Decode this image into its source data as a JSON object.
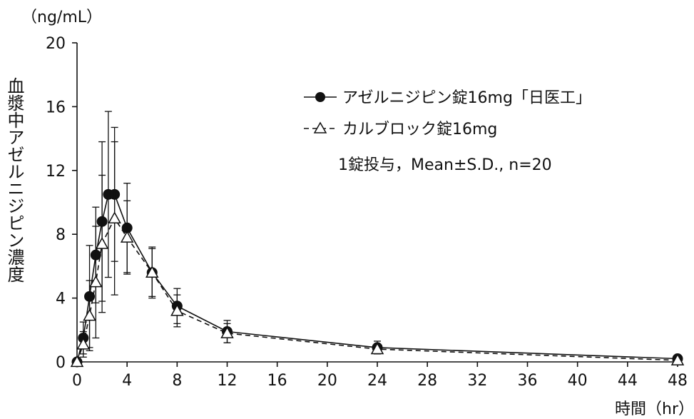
{
  "chart_data": {
    "type": "line",
    "y_unit": "（ng/mL）",
    "ylabel": "血漿中アゼルニジピン濃度",
    "xlabel": "時間（hr）",
    "annotation": "1錠投与，Mean±S.D., n=20",
    "xlim": [
      0,
      48
    ],
    "ylim": [
      0,
      20
    ],
    "xticks": [
      0,
      4,
      8,
      12,
      16,
      20,
      24,
      28,
      32,
      36,
      40,
      44,
      48
    ],
    "yticks": [
      0,
      4,
      8,
      12,
      16,
      20
    ],
    "grid": false,
    "legend_position": "top-right",
    "series": [
      {
        "name": "アゼルニジピン錠16mg「日医工」",
        "marker": "filled-circle",
        "line": "solid",
        "points": [
          {
            "x": 0,
            "y": 0,
            "sd": 0
          },
          {
            "x": 0.5,
            "y": 1.5,
            "sd": 1.0
          },
          {
            "x": 1,
            "y": 4.1,
            "sd": 3.2
          },
          {
            "x": 1.5,
            "y": 6.7,
            "sd": 3.0
          },
          {
            "x": 2,
            "y": 8.8,
            "sd": 5.0
          },
          {
            "x": 2.5,
            "y": 10.5,
            "sd": 5.2
          },
          {
            "x": 3,
            "y": 10.5,
            "sd": 4.2
          },
          {
            "x": 4,
            "y": 8.4,
            "sd": 2.8
          },
          {
            "x": 6,
            "y": 5.6,
            "sd": 1.6
          },
          {
            "x": 8,
            "y": 3.5,
            "sd": 1.1
          },
          {
            "x": 12,
            "y": 1.9,
            "sd": 0.7
          },
          {
            "x": 24,
            "y": 0.9,
            "sd": 0.4
          },
          {
            "x": 48,
            "y": 0.2,
            "sd": 0.1
          }
        ]
      },
      {
        "name": "カルブロック錠16mg",
        "marker": "open-triangle",
        "line": "dashed",
        "points": [
          {
            "x": 0,
            "y": 0,
            "sd": 0
          },
          {
            "x": 0.5,
            "y": 1.1,
            "sd": 0.8
          },
          {
            "x": 1,
            "y": 2.9,
            "sd": 2.2
          },
          {
            "x": 1.5,
            "y": 5.0,
            "sd": 3.5
          },
          {
            "x": 2,
            "y": 7.4,
            "sd": 4.3
          },
          {
            "x": 3,
            "y": 9.0,
            "sd": 4.8
          },
          {
            "x": 4,
            "y": 7.8,
            "sd": 2.3
          },
          {
            "x": 6,
            "y": 5.6,
            "sd": 1.5
          },
          {
            "x": 8,
            "y": 3.2,
            "sd": 1.0
          },
          {
            "x": 12,
            "y": 1.8,
            "sd": 0.6
          },
          {
            "x": 24,
            "y": 0.8,
            "sd": 0.3
          },
          {
            "x": 48,
            "y": 0.1,
            "sd": 0.1
          }
        ]
      }
    ]
  }
}
